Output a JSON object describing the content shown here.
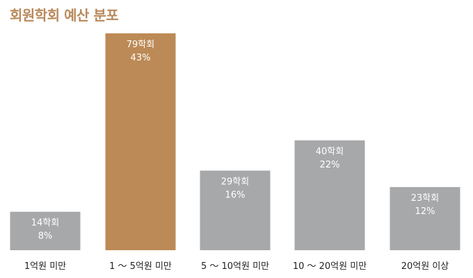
{
  "title": "회원학회 예산 분포",
  "colors": {
    "highlight": "#bc8a56",
    "default": "#a7a8aa",
    "title": "#b8895a"
  },
  "chart_data": {
    "type": "bar",
    "title": "회원학회 예산 분포",
    "xlabel": "",
    "ylabel": "",
    "ylim": [
      0,
      79
    ],
    "grid": false,
    "highlight_index": 1,
    "categories": [
      "1억원 미만",
      "1 ～ 5억원 미만",
      "5 ～ 10억원 미만",
      "10 ～ 20억원 미만",
      "20억원 이상"
    ],
    "values": [
      14,
      79,
      29,
      40,
      23
    ],
    "count_labels": [
      "14학회",
      "79학회",
      "29학회",
      "40학회",
      "23학회"
    ],
    "percent_labels": [
      "8%",
      "43%",
      "16%",
      "22%",
      "12%"
    ]
  }
}
